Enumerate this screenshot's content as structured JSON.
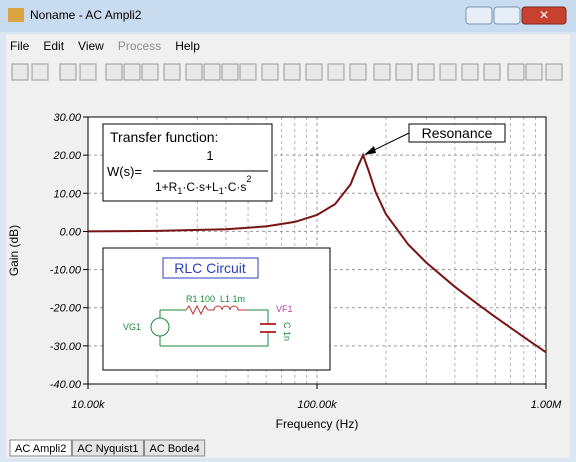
{
  "window": {
    "title": "Noname - AC Ampli2"
  },
  "menu": [
    "File",
    "Edit",
    "View",
    "Process",
    "Help"
  ],
  "tabs": [
    "AC Ampli2",
    "AC Nyquist1",
    "AC Bode4"
  ],
  "chart_data": {
    "type": "line",
    "xlabel": "Frequency (Hz)",
    "ylabel": "Gain (dB)",
    "x": [
      10000,
      20000,
      40000,
      60000,
      80000,
      100000,
      120000,
      140000,
      150000,
      159000,
      170000,
      180000,
      200000,
      250000,
      300000,
      400000,
      500000,
      600000,
      800000,
      1000000
    ],
    "series": [
      {
        "name": "VF1",
        "color": "#7a1414",
        "values": [
          0.0,
          0.14,
          0.56,
          1.32,
          2.51,
          4.32,
          7.17,
          12.3,
          16.7,
          20.0,
          15.0,
          10.4,
          4.54,
          -3.38,
          -8.16,
          -14.52,
          -18.96,
          -22.42,
          -27.7,
          -31.7
        ]
      }
    ],
    "xlim": [
      10000,
      1000000
    ],
    "xlog": true,
    "xticks": [
      {
        "value": 10000,
        "label": "10.00k"
      },
      {
        "value": 100000,
        "label": "100.00k"
      },
      {
        "value": 1000000,
        "label": "1.00M"
      }
    ],
    "ylim": [
      -40,
      30
    ],
    "yticks": [
      {
        "value": -40,
        "label": "-40.00"
      },
      {
        "value": -30,
        "label": "-30.00"
      },
      {
        "value": -20,
        "label": "-20.00"
      },
      {
        "value": -10,
        "label": "-10.00"
      },
      {
        "value": 0,
        "label": "0.00"
      },
      {
        "value": 10,
        "label": "10.00"
      },
      {
        "value": 20,
        "label": "20.00"
      },
      {
        "value": 30,
        "label": "30.00"
      }
    ],
    "grid": true,
    "annotations": {
      "resonance": "Resonance",
      "transfer": {
        "heading": "Transfer function:",
        "lhs": "W(s)=",
        "numerator": "1",
        "denominator": [
          "1+R",
          "1",
          "·C·s+L",
          "1",
          "·C·s",
          "2"
        ]
      },
      "circuit": {
        "title": "RLC Circuit",
        "r": "R1 100",
        "l": "L1 1m",
        "c": "C 1n",
        "source": "VG1",
        "probe": "VF1"
      }
    }
  }
}
